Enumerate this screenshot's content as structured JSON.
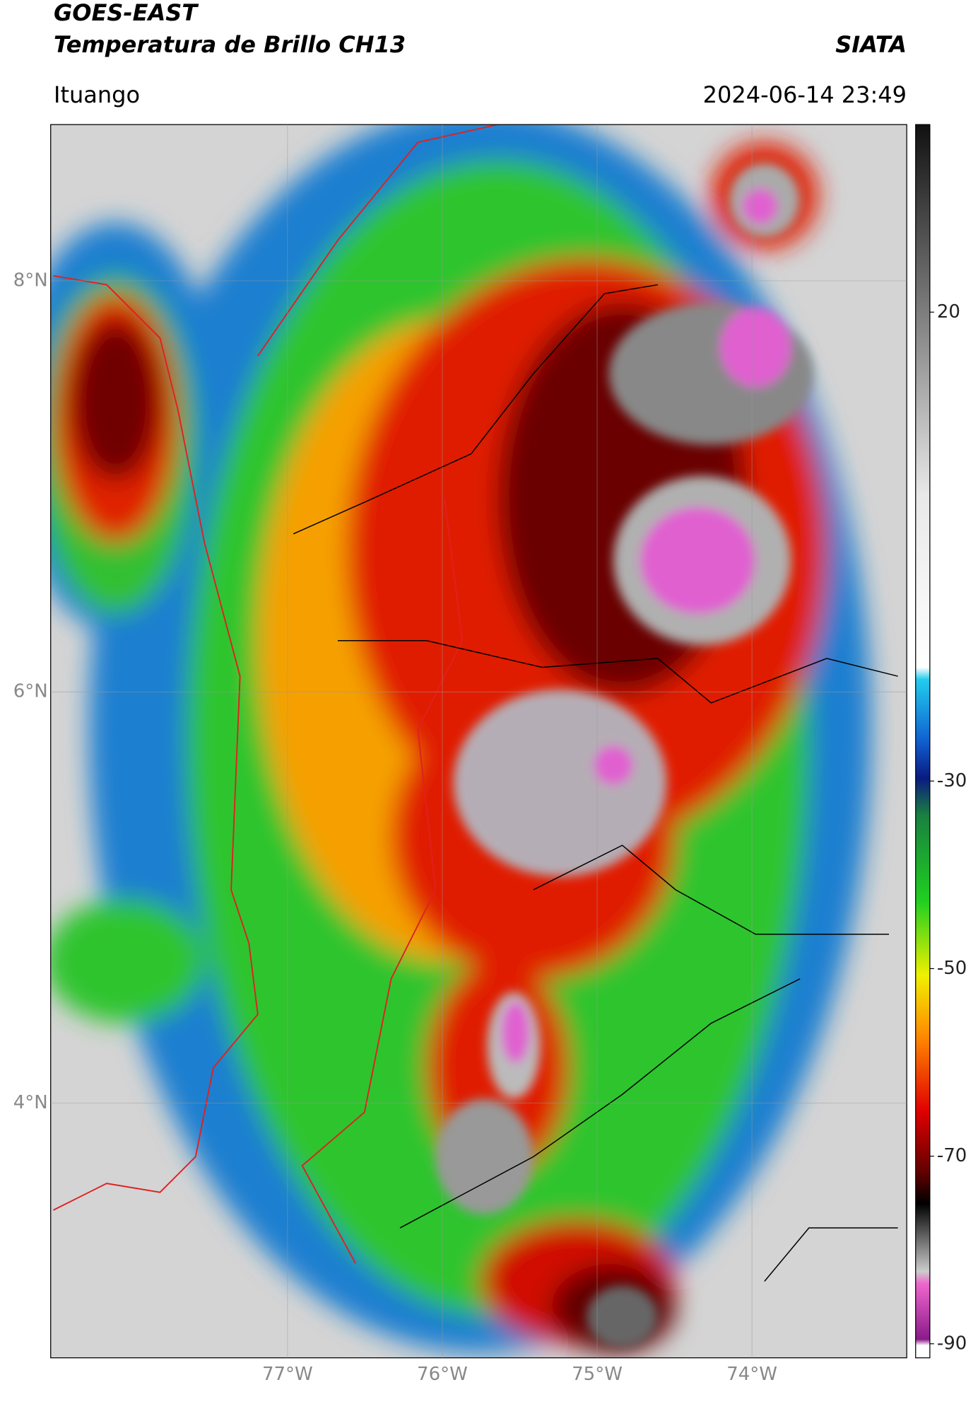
{
  "header": {
    "title": "GOES-EAST",
    "subtitle": "Temperatura de Brillo CH13",
    "source": "SIATA",
    "location": "Ituango",
    "datetime": "2024-06-14 23:49"
  },
  "map": {
    "xlim": [
      -78.53,
      -73.0
    ],
    "ylim": [
      2.76,
      8.76
    ],
    "xticks": [
      {
        "value": -77,
        "label": "77°W"
      },
      {
        "value": -76,
        "label": "76°W"
      },
      {
        "value": -75,
        "label": "75°W"
      },
      {
        "value": -74,
        "label": "74°W"
      }
    ],
    "yticks": [
      {
        "value": 8,
        "label": "8°N"
      },
      {
        "value": 6,
        "label": "6°N"
      },
      {
        "value": 4,
        "label": "4°N"
      }
    ],
    "grid": true
  },
  "colorbar": {
    "lim": [
      -91.5,
      40
    ],
    "ticks": [
      20,
      -30,
      -50,
      -70,
      -90
    ]
  }
}
